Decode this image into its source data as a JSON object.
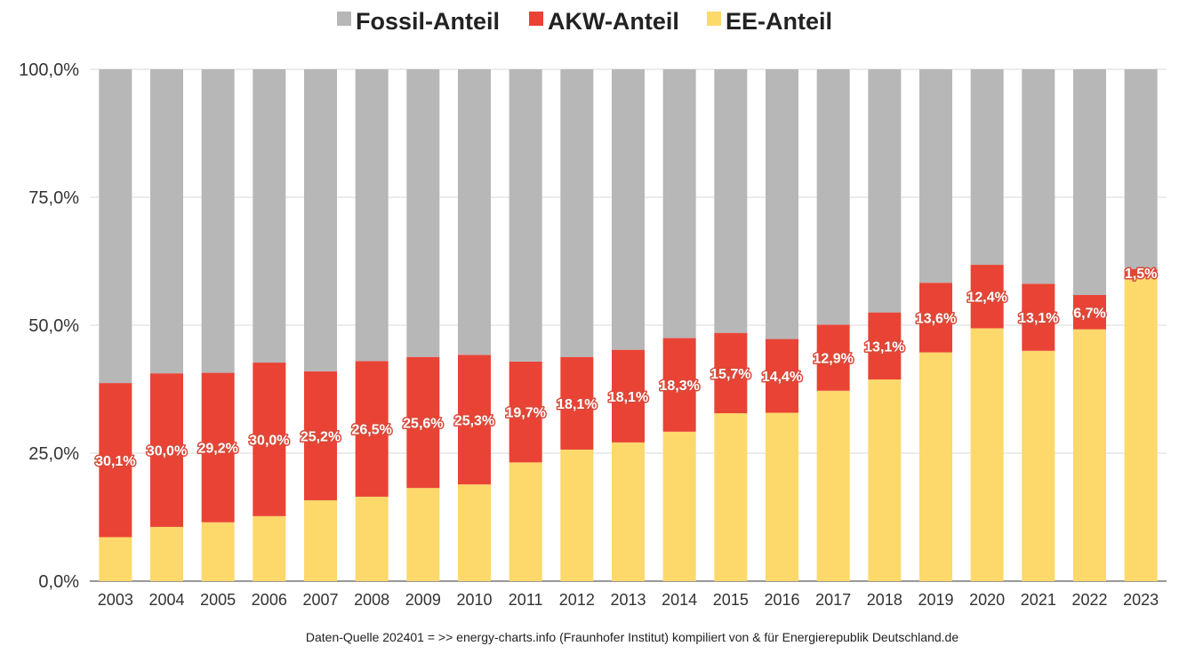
{
  "chart_data": {
    "type": "bar",
    "stacked": true,
    "percent_stacked": true,
    "categories": [
      "2003",
      "2004",
      "2005",
      "2006",
      "2007",
      "2008",
      "2009",
      "2010",
      "2011",
      "2012",
      "2013",
      "2014",
      "2015",
      "2016",
      "2017",
      "2018",
      "2019",
      "2020",
      "2021",
      "2022",
      "2023"
    ],
    "series": [
      {
        "name": "EE-Anteil",
        "color": "#fdd86b",
        "values": [
          8.6,
          10.6,
          11.5,
          12.7,
          15.8,
          16.5,
          18.2,
          18.9,
          23.2,
          25.7,
          27.1,
          29.2,
          32.8,
          32.9,
          37.2,
          39.4,
          44.7,
          49.4,
          45.0,
          49.2,
          59.5
        ]
      },
      {
        "name": "AKW-Anteil",
        "color": "#e94335",
        "values": [
          30.1,
          30.0,
          29.2,
          30.0,
          25.2,
          26.5,
          25.6,
          25.3,
          19.7,
          18.1,
          18.1,
          18.3,
          15.7,
          14.4,
          12.9,
          13.1,
          13.6,
          12.4,
          13.1,
          6.7,
          1.5
        ]
      },
      {
        "name": "Fossil-Anteil",
        "color": "#b7b7b7",
        "values": [
          61.3,
          59.4,
          59.3,
          57.3,
          59.0,
          57.0,
          56.2,
          55.8,
          57.1,
          56.2,
          54.8,
          52.5,
          51.5,
          52.7,
          49.9,
          47.5,
          41.7,
          38.2,
          41.9,
          44.1,
          39.0
        ]
      }
    ],
    "data_labels": [
      "30,1%",
      "30,0%",
      "29,2%",
      "30,0%",
      "25,2%",
      "26,5%",
      "25,6%",
      "25,3%",
      "19,7%",
      "18,1%",
      "18,1%",
      "18,3%",
      "15,7%",
      "14,4%",
      "12,9%",
      "13,1%",
      "13,6%",
      "12,4%",
      "13,1%",
      "6,7%",
      "1,5%"
    ],
    "y_ticks": [
      "0,0%",
      "25,0%",
      "50,0%",
      "75,0%",
      "100,0%"
    ],
    "ylim": [
      0,
      100
    ],
    "grid": true,
    "legend": "top-center",
    "title": "",
    "xlabel": "",
    "ylabel": ""
  },
  "legend": [
    {
      "label": "Fossil-Anteil",
      "color": "#b7b7b7"
    },
    {
      "label": "AKW-Anteil",
      "color": "#e94335"
    },
    {
      "label": "EE-Anteil",
      "color": "#fdd86b"
    }
  ],
  "source_note": "Daten-Quelle 202401 =  >> energy-charts.info  (Fraunhofer Institut)  kompiliert von & für Energierepublik Deutschland.de"
}
